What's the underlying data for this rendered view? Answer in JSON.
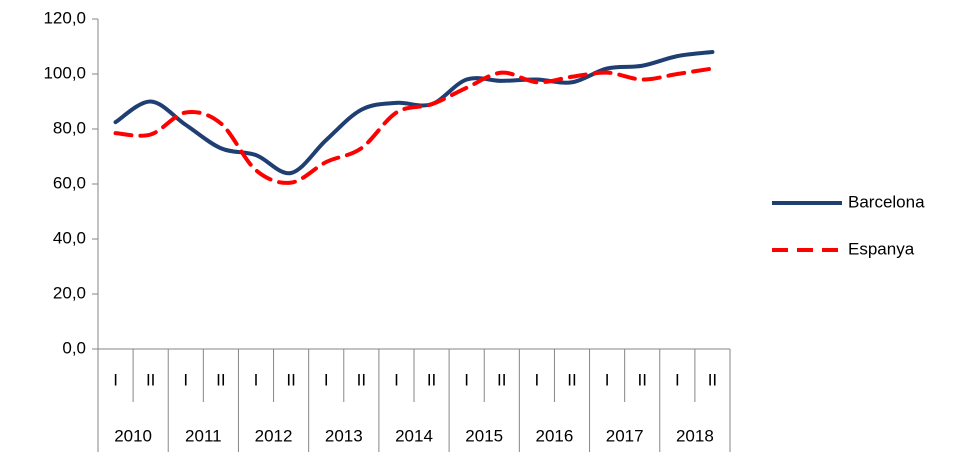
{
  "chart_data": {
    "type": "line",
    "categories": [
      "I",
      "II",
      "I",
      "II",
      "I",
      "II",
      "I",
      "II",
      "I",
      "II",
      "I",
      "II",
      "I",
      "II",
      "I",
      "II",
      "I",
      "II"
    ],
    "category_groups": [
      "2010",
      "2011",
      "2012",
      "2013",
      "2014",
      "2015",
      "2016",
      "2017",
      "2018"
    ],
    "series": [
      {
        "name": "Barcelona",
        "color": "#1f3f73",
        "dash": false,
        "values": [
          82.5,
          90,
          81.5,
          73,
          70.5,
          64,
          76,
          87,
          89.5,
          89,
          98,
          97.5,
          98,
          97,
          102,
          103,
          106.5,
          108
        ]
      },
      {
        "name": "Espanya",
        "color": "#ff0000",
        "dash": true,
        "values": [
          78.5,
          78,
          86,
          82,
          65,
          60.5,
          68,
          73,
          86,
          89,
          95,
          100.5,
          97,
          99,
          100.5,
          98,
          100,
          102
        ]
      }
    ],
    "ylim": [
      0,
      120
    ],
    "yticks": [
      {
        "value": 0,
        "label": "0,0"
      },
      {
        "value": 20,
        "label": "20,0"
      },
      {
        "value": 40,
        "label": "40,0"
      },
      {
        "value": 60,
        "label": "60,0"
      },
      {
        "value": 80,
        "label": "80,0"
      },
      {
        "value": 100,
        "label": "100,0"
      },
      {
        "value": 120,
        "label": "120,0"
      }
    ],
    "grid": false,
    "legend": "right"
  }
}
